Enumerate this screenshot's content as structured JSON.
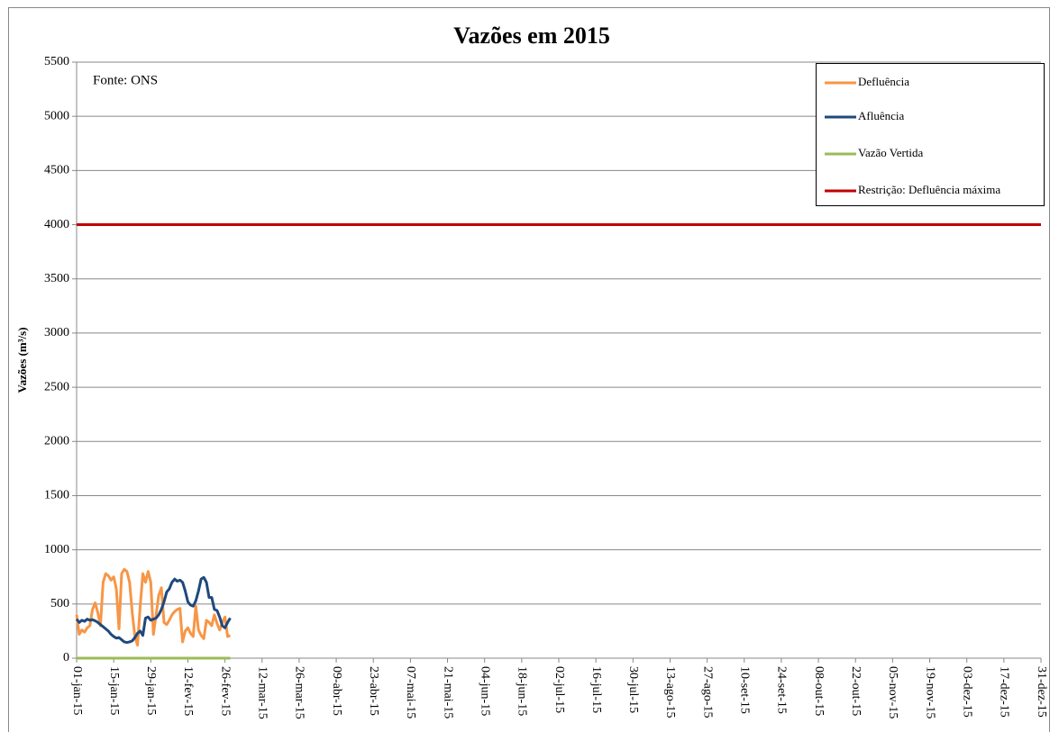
{
  "chart_data": {
    "type": "line",
    "title": "Vazões em 2015",
    "ylabel": "Vazões (m³/s)",
    "annotation": "Fonte: ONS",
    "grid": true,
    "legend": "upper right",
    "ylim": [
      0,
      5500
    ],
    "yticks": [
      0,
      500,
      1000,
      1500,
      2000,
      2500,
      3000,
      3500,
      4000,
      4500,
      5000,
      5500
    ],
    "xlim": [
      "2015-01-01",
      "2015-12-31"
    ],
    "xticks": [
      {
        "value": "2015-01-01",
        "label": "01-jan-15"
      },
      {
        "value": "2015-01-15",
        "label": "15-jan-15"
      },
      {
        "value": "2015-01-29",
        "label": "29-jan-15"
      },
      {
        "value": "2015-02-12",
        "label": "12-fev-15"
      },
      {
        "value": "2015-02-26",
        "label": "26-fev-15"
      },
      {
        "value": "2015-03-12",
        "label": "12-mar-15"
      },
      {
        "value": "2015-03-26",
        "label": "26-mar-15"
      },
      {
        "value": "2015-04-09",
        "label": "09-abr-15"
      },
      {
        "value": "2015-04-23",
        "label": "23-abr-15"
      },
      {
        "value": "2015-05-07",
        "label": "07-mai-15"
      },
      {
        "value": "2015-05-21",
        "label": "21-mai-15"
      },
      {
        "value": "2015-06-04",
        "label": "04-jun-15"
      },
      {
        "value": "2015-06-18",
        "label": "18-jun-15"
      },
      {
        "value": "2015-07-02",
        "label": "02-jul-15"
      },
      {
        "value": "2015-07-16",
        "label": "16-jul-15"
      },
      {
        "value": "2015-07-30",
        "label": "30-jul-15"
      },
      {
        "value": "2015-08-13",
        "label": "13-ago-15"
      },
      {
        "value": "2015-08-27",
        "label": "27-ago-15"
      },
      {
        "value": "2015-09-10",
        "label": "10-set-15"
      },
      {
        "value": "2015-09-24",
        "label": "24-set-15"
      },
      {
        "value": "2015-10-08",
        "label": "08-out-15"
      },
      {
        "value": "2015-10-22",
        "label": "22-out-15"
      },
      {
        "value": "2015-11-05",
        "label": "05-nov-15"
      },
      {
        "value": "2015-11-19",
        "label": "19-nov-15"
      },
      {
        "value": "2015-12-03",
        "label": "03-dez-15"
      },
      {
        "value": "2015-12-17",
        "label": "17-dez-15"
      },
      {
        "value": "2015-12-31",
        "label": "31-dez-15"
      }
    ],
    "x": [
      "2015-01-01",
      "2015-01-02",
      "2015-01-03",
      "2015-01-04",
      "2015-01-05",
      "2015-01-06",
      "2015-01-07",
      "2015-01-08",
      "2015-01-09",
      "2015-01-10",
      "2015-01-11",
      "2015-01-12",
      "2015-01-13",
      "2015-01-14",
      "2015-01-15",
      "2015-01-16",
      "2015-01-17",
      "2015-01-18",
      "2015-01-19",
      "2015-01-20",
      "2015-01-21",
      "2015-01-22",
      "2015-01-23",
      "2015-01-24",
      "2015-01-25",
      "2015-01-26",
      "2015-01-27",
      "2015-01-28",
      "2015-01-29",
      "2015-01-30",
      "2015-01-31",
      "2015-02-01",
      "2015-02-02",
      "2015-02-03",
      "2015-02-04",
      "2015-02-05",
      "2015-02-06",
      "2015-02-07",
      "2015-02-08",
      "2015-02-09",
      "2015-02-10",
      "2015-02-11",
      "2015-02-12",
      "2015-02-13",
      "2015-02-14",
      "2015-02-15",
      "2015-02-16",
      "2015-02-17",
      "2015-02-18",
      "2015-02-19",
      "2015-02-20",
      "2015-02-21",
      "2015-02-22",
      "2015-02-23",
      "2015-02-24",
      "2015-02-25",
      "2015-02-26",
      "2015-02-27",
      "2015-02-28"
    ],
    "series": [
      {
        "name": "Defluência",
        "color": "#f79646",
        "values": [
          400,
          220,
          260,
          240,
          280,
          300,
          450,
          510,
          420,
          300,
          700,
          780,
          760,
          720,
          750,
          640,
          270,
          780,
          820,
          800,
          700,
          420,
          200,
          120,
          480,
          780,
          700,
          800,
          700,
          220,
          400,
          580,
          650,
          330,
          310,
          350,
          400,
          430,
          450,
          460,
          150,
          250,
          280,
          230,
          200,
          480,
          260,
          210,
          180,
          350,
          330,
          300,
          400,
          320,
          260,
          330,
          380,
          200,
          210
        ]
      },
      {
        "name": "Afluência",
        "color": "#1f497d",
        "values": [
          360,
          330,
          350,
          340,
          360,
          350,
          355,
          345,
          330,
          310,
          290,
          270,
          250,
          220,
          200,
          185,
          190,
          170,
          150,
          145,
          150,
          160,
          190,
          230,
          250,
          210,
          370,
          380,
          350,
          360,
          370,
          400,
          450,
          520,
          610,
          640,
          700,
          730,
          710,
          720,
          700,
          620,
          520,
          490,
          480,
          530,
          620,
          730,
          745,
          700,
          560,
          560,
          450,
          440,
          380,
          300,
          280,
          330,
          370
        ]
      },
      {
        "name": "Vazão Vertida",
        "color": "#9bbb59",
        "values": [
          0,
          0,
          0,
          0,
          0,
          0,
          0,
          0,
          0,
          0,
          0,
          0,
          0,
          0,
          0,
          0,
          0,
          0,
          0,
          0,
          0,
          0,
          0,
          0,
          0,
          0,
          0,
          0,
          0,
          0,
          0,
          0,
          0,
          0,
          0,
          0,
          0,
          0,
          0,
          0,
          0,
          0,
          0,
          0,
          0,
          0,
          0,
          0,
          0,
          0,
          0,
          0,
          0,
          0,
          0,
          0,
          0,
          0,
          0
        ]
      },
      {
        "name": "Restrição: Defluência máxima",
        "color": "#c00000",
        "x": [
          "2015-01-01",
          "2015-12-31"
        ],
        "values": [
          4000,
          4000
        ]
      }
    ]
  }
}
